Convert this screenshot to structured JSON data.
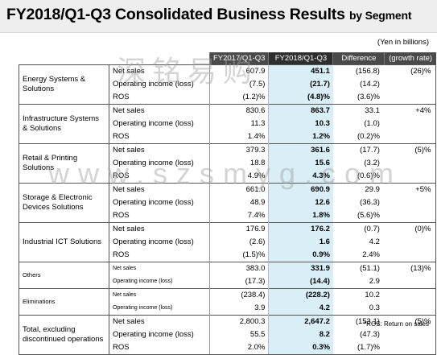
{
  "title": {
    "main": "FY2018/Q1-Q3 Consolidated Business Results",
    "sub": "by Segment"
  },
  "unit": "(Yen in billions)",
  "columns": {
    "prev": "FY2017/Q1-Q3",
    "cur": "FY2018/Q1-Q3",
    "diff": "Difference",
    "growth": "(growth rate)"
  },
  "segments": [
    {
      "name": "Energy Systems & Solutions",
      "rows": [
        {
          "metric": "Net sales",
          "prev": "607.9",
          "cur": "451.1",
          "diff": "(156.8)",
          "growth": "(26)%"
        },
        {
          "metric": "Operating income (loss)",
          "prev": "(7.5)",
          "cur": "(21.7)",
          "diff": "(14.2)",
          "growth": ""
        },
        {
          "metric": "ROS",
          "prev": "(1.2)%",
          "cur": "(4.8)%",
          "diff": "(3.6)%",
          "growth": ""
        }
      ]
    },
    {
      "name": "Infrastructure Systems & Solutions",
      "rows": [
        {
          "metric": "Net sales",
          "prev": "830.6",
          "cur": "863.7",
          "diff": "33.1",
          "growth": "+4%"
        },
        {
          "metric": "Operating income (loss)",
          "prev": "11.3",
          "cur": "10.3",
          "diff": "(1.0)",
          "growth": ""
        },
        {
          "metric": "ROS",
          "prev": "1.4%",
          "cur": "1.2%",
          "diff": "(0.2)%",
          "growth": ""
        }
      ]
    },
    {
      "name": "Retail & Printing Solutions",
      "rows": [
        {
          "metric": "Net sales",
          "prev": "379.3",
          "cur": "361.6",
          "diff": "(17.7)",
          "growth": "(5)%"
        },
        {
          "metric": "Operating income (loss)",
          "prev": "18.8",
          "cur": "15.6",
          "diff": "(3.2)",
          "growth": ""
        },
        {
          "metric": "ROS",
          "prev": "4.9%",
          "cur": "4.3%",
          "diff": "(0.6)%",
          "growth": ""
        }
      ]
    },
    {
      "name": "Storage & Electronic Devices Solutions",
      "rows": [
        {
          "metric": "Net sales",
          "prev": "661.0",
          "cur": "690.9",
          "diff": "29.9",
          "growth": "+5%"
        },
        {
          "metric": "Operating income (loss)",
          "prev": "48.9",
          "cur": "12.6",
          "diff": "(36.3)",
          "growth": ""
        },
        {
          "metric": "ROS",
          "prev": "7.4%",
          "cur": "1.8%",
          "diff": "(5.6)%",
          "growth": ""
        }
      ]
    },
    {
      "name": "Industrial ICT Solutions",
      "rows": [
        {
          "metric": "Net sales",
          "prev": "176.9",
          "cur": "176.2",
          "diff": "(0.7)",
          "growth": "(0)%"
        },
        {
          "metric": "Operating income (loss)",
          "prev": "(2.6)",
          "cur": "1.6",
          "diff": "4.2",
          "growth": ""
        },
        {
          "metric": "ROS",
          "prev": "(1.5)%",
          "cur": "0.9%",
          "diff": "2.4%",
          "growth": ""
        }
      ]
    },
    {
      "name": "Others",
      "small": true,
      "rows": [
        {
          "metric": "Net sales",
          "prev": "383.0",
          "cur": "331.9",
          "diff": "(51.1)",
          "growth": "(13)%"
        },
        {
          "metric": "Operating income (loss)",
          "prev": "(17.3)",
          "cur": "(14.4)",
          "diff": "2.9",
          "growth": ""
        }
      ]
    },
    {
      "name": "Eliminations",
      "small": true,
      "rows": [
        {
          "metric": "Net sales",
          "prev": "(238.4)",
          "cur": "(228.2)",
          "diff": "10.2",
          "growth": ""
        },
        {
          "metric": "Operating income (loss)",
          "prev": "3.9",
          "cur": "4.2",
          "diff": "0.3",
          "growth": ""
        }
      ]
    },
    {
      "name": "Total, excluding discontinued operations",
      "rows": [
        {
          "metric": "Net sales",
          "prev": "2,800.3",
          "cur": "2,647.2",
          "diff": "(153.1)",
          "growth": "(5)%"
        },
        {
          "metric": "Operating income (loss)",
          "prev": "55.5",
          "cur": "8.2",
          "diff": "(47.3)",
          "growth": ""
        },
        {
          "metric": "ROS",
          "prev": "2.0%",
          "cur": "0.3%",
          "diff": "(1.7)%",
          "growth": ""
        }
      ]
    }
  ],
  "footnote": "*ROS: Return on sales",
  "watermark": {
    "top": "深铭易购",
    "middle": "www.szsmyg.com"
  }
}
